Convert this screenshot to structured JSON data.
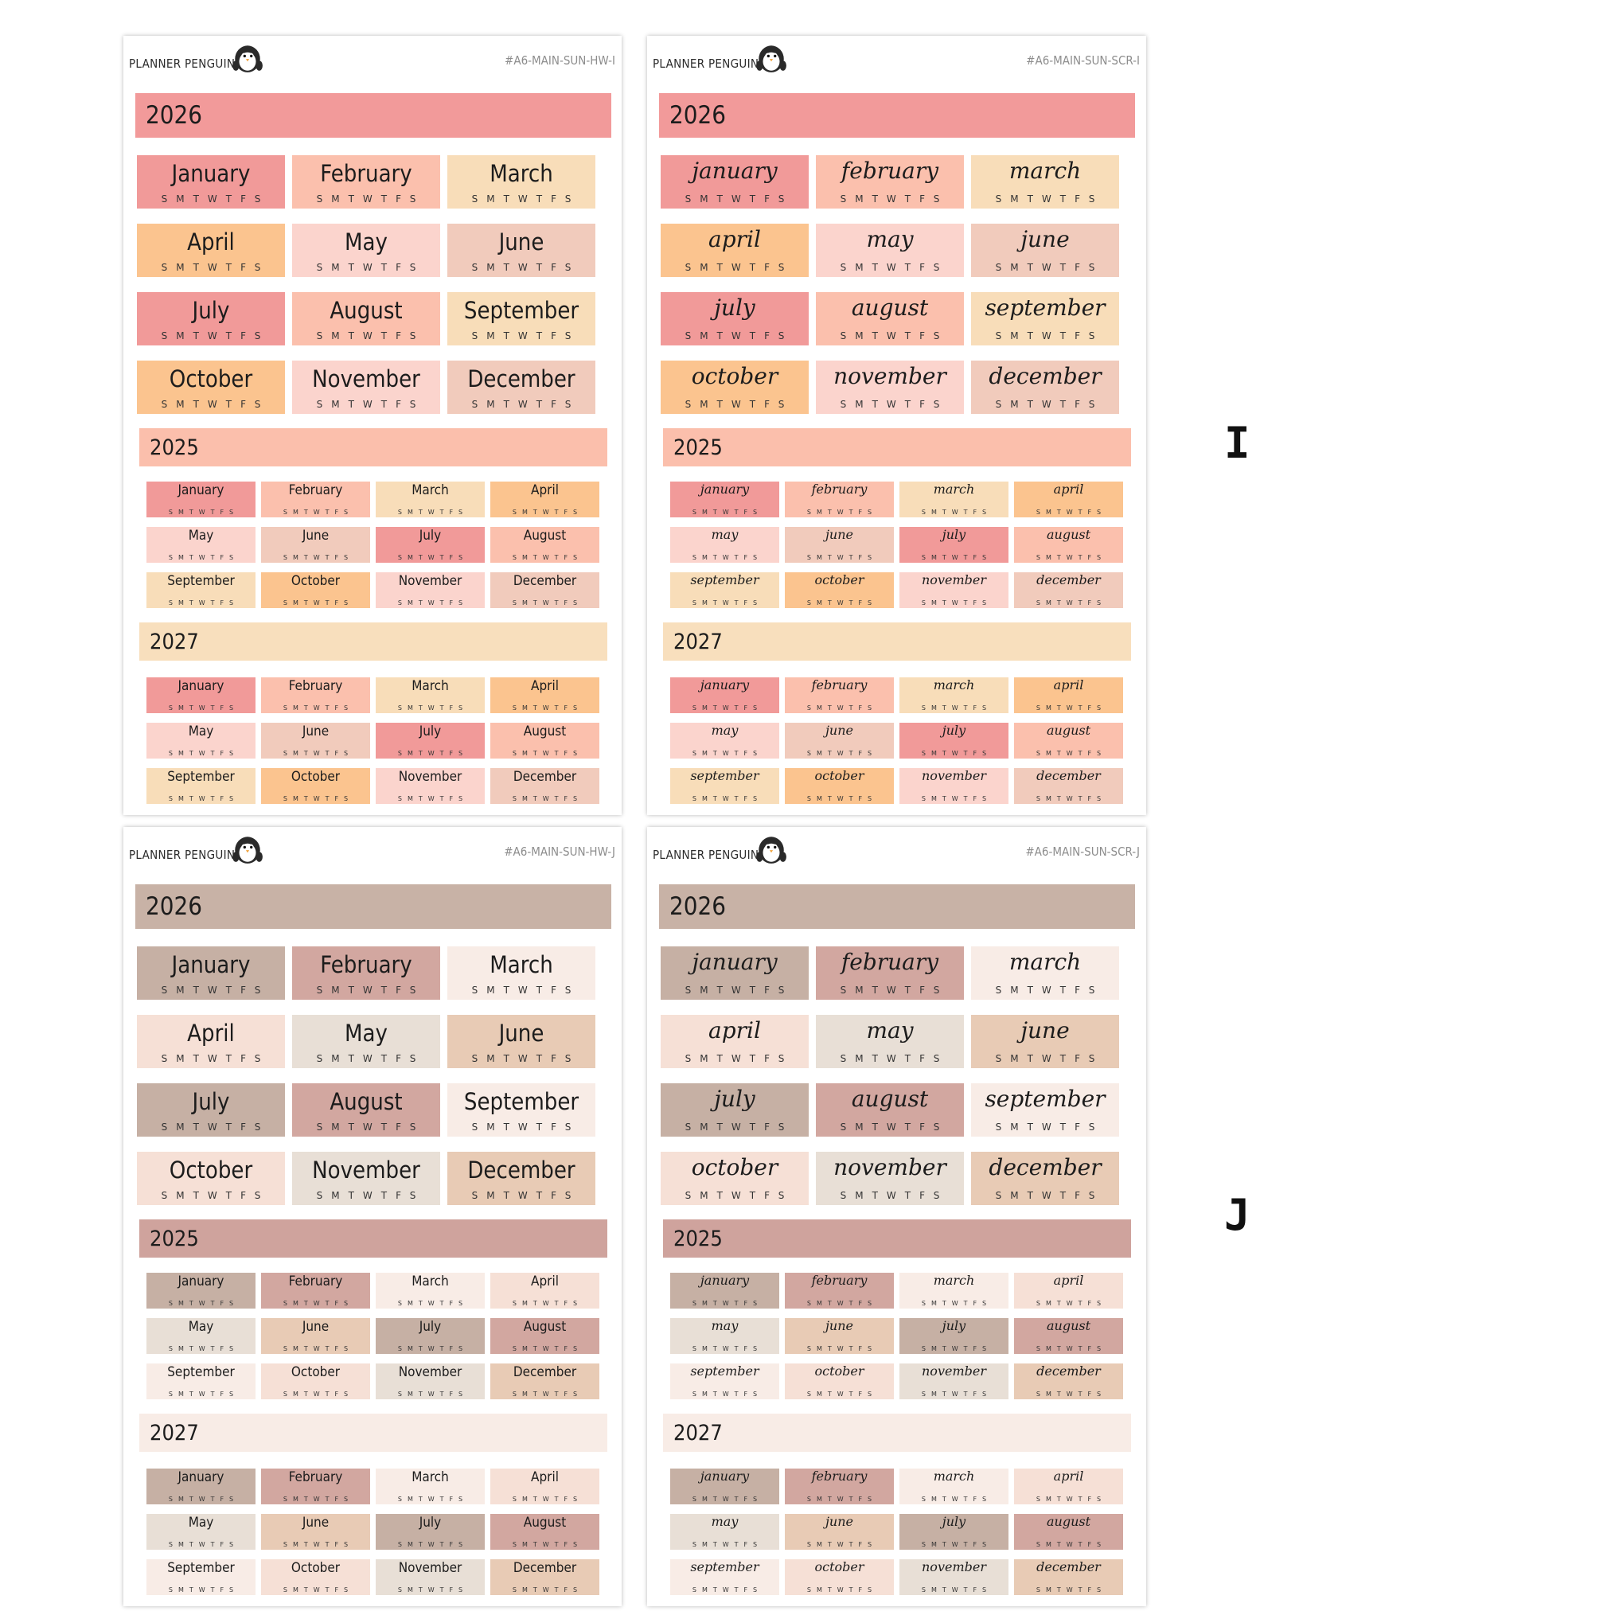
{
  "colors": {
    "I": {
      "band2026": "#f29a9a",
      "band2025": "#fbbfac",
      "band2027": "#f8dfbd",
      "palette": [
        "#f19a99",
        "#fbc0ad",
        "#f8ddb9",
        "#fbc48f",
        "#fbd4cd",
        "#f1cbbc"
      ]
    },
    "J": {
      "band2026": "#c8b2a6",
      "band2025": "#cfa39d",
      "band2027": "#f8ece6",
      "palette": [
        "#c6b0a4",
        "#d2a7a0",
        "#f8ece6",
        "#f6e0d6",
        "#e8dfd6",
        "#e8cbb5"
      ]
    }
  },
  "sheets": [
    {
      "brand": "PLANNER PENGUIN",
      "code": "#A6-MAIN-SUN-HW-I",
      "style": "print",
      "set": "I",
      "years": [
        "2026",
        "2025",
        "2027"
      ],
      "months": [
        "January",
        "February",
        "March",
        "April",
        "May",
        "June",
        "July",
        "August",
        "September",
        "October",
        "November",
        "December"
      ],
      "days": "SMTWTFS"
    },
    {
      "brand": "PLANNER PENGUIN",
      "code": "#A6-MAIN-SUN-SCR-I",
      "style": "script",
      "set": "I",
      "years": [
        "2026",
        "2025",
        "2027"
      ],
      "months": [
        "january",
        "february",
        "march",
        "april",
        "may",
        "june",
        "july",
        "august",
        "september",
        "october",
        "november",
        "december"
      ],
      "days": "SMTWTFS"
    },
    {
      "brand": "PLANNER PENGUIN",
      "code": "#A6-MAIN-SUN-HW-J",
      "style": "print",
      "set": "J",
      "years": [
        "2026",
        "2025",
        "2027"
      ],
      "months": [
        "January",
        "February",
        "March",
        "April",
        "May",
        "June",
        "July",
        "August",
        "September",
        "October",
        "November",
        "December"
      ],
      "days": "SMTWTFS"
    },
    {
      "brand": "PLANNER PENGUIN",
      "code": "#A6-MAIN-SUN-SCR-J",
      "style": "script",
      "set": "J",
      "years": [
        "2026",
        "2025",
        "2027"
      ],
      "months": [
        "january",
        "february",
        "march",
        "april",
        "may",
        "june",
        "july",
        "august",
        "september",
        "october",
        "november",
        "december"
      ],
      "days": "SMTWTFS"
    }
  ],
  "icons": {
    "penguin": "penguin-icon"
  },
  "labels": [
    "I",
    "J"
  ]
}
